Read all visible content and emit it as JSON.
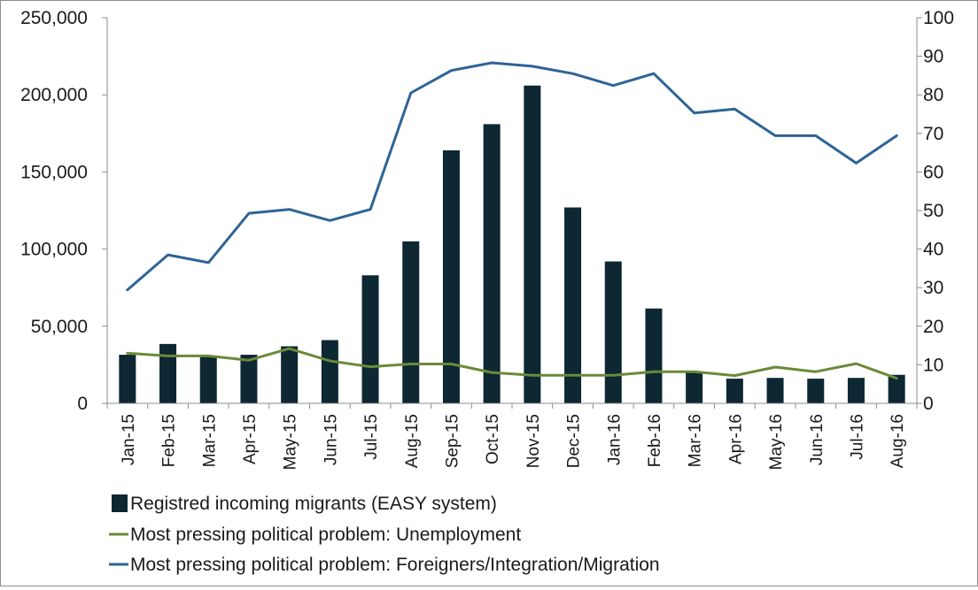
{
  "chart_data": {
    "type": "bar",
    "categories": [
      "Jan-15",
      "Feb-15",
      "Mar-15",
      "Apr-15",
      "May-15",
      "Jun-15",
      "Jul-15",
      "Aug-15",
      "Sep-15",
      "Oct-15",
      "Nov-15",
      "Dec-15",
      "Jan-16",
      "Feb-16",
      "Mar-16",
      "Apr-16",
      "May-16",
      "Jun-16",
      "Jul-16",
      "Aug-16"
    ],
    "series": [
      {
        "name": "Registred incoming migrants (EASY system)",
        "type": "bar",
        "axis": "left",
        "color": "#0d2733",
        "values": [
          31500,
          38500,
          31000,
          31500,
          37000,
          41000,
          83000,
          105000,
          164000,
          181000,
          206000,
          127000,
          92000,
          61500,
          20500,
          16000,
          16500,
          16000,
          16500,
          18500
        ]
      },
      {
        "name": "Most pressing political problem: Unemployment",
        "type": "line",
        "axis": "right",
        "color": "#6a8a38",
        "values": [
          13,
          12.3,
          12.3,
          11.2,
          14.2,
          11,
          9.5,
          10.2,
          10.2,
          8,
          7.3,
          7.3,
          7.3,
          8.2,
          8.2,
          7.2,
          9.4,
          8.2,
          10.3,
          6.5
        ]
      },
      {
        "name": "Most pressing political problem: Foreigners/Integration/Migration",
        "type": "line",
        "axis": "right",
        "color": "#2e6496",
        "values": [
          29.4,
          38.5,
          36.5,
          49.3,
          50.3,
          47.4,
          50.3,
          80.5,
          86.3,
          88.3,
          87.4,
          85.5,
          82.4,
          85.5,
          75.3,
          76.3,
          69.4,
          69.4,
          62.3,
          69.4
        ]
      }
    ],
    "y_left": {
      "min": 0,
      "max": 250000,
      "ticks": [
        "0",
        "50,000",
        "100,000",
        "150,000",
        "200,000",
        "250,000"
      ]
    },
    "y_right": {
      "min": 0,
      "max": 100,
      "ticks": [
        "0",
        "10",
        "20",
        "30",
        "40",
        "50",
        "60",
        "70",
        "80",
        "90",
        "100"
      ]
    },
    "title": "",
    "xlabel": "",
    "ylabel": "",
    "grid": false,
    "legend_position": "bottom"
  }
}
